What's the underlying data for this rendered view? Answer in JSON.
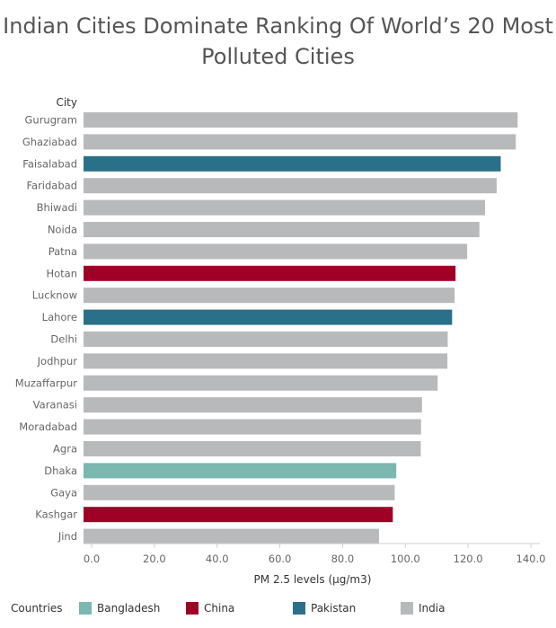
{
  "chart_data": {
    "type": "bar",
    "orientation": "horizontal",
    "title": "Indian Cities Dominate Ranking Of World’s 20 Most Polluted Cities",
    "title_lines": [
      "Indian Cities Dominate Ranking Of World’s 20 Most",
      "Polluted Cities"
    ],
    "ylabel": "City",
    "xlabel": "PM 2.5 levels (µg/m3)",
    "xlim": [
      0,
      140
    ],
    "xticks": [
      "0.0",
      "20.0",
      "40.0",
      "60.0",
      "80.0",
      "100.0",
      "120.0",
      "140.0"
    ],
    "categories": [
      "Gurugram",
      "Ghaziabad",
      "Faisalabad",
      "Faridabad",
      "Bhiwadi",
      "Noida",
      "Patna",
      "Hotan",
      "Lucknow",
      "Lahore",
      "Delhi",
      "Jodhpur",
      "Muzaffarpur",
      "Varanasi",
      "Moradabad",
      "Agra",
      "Dhaka",
      "Gaya",
      "Kashgar",
      "Jind"
    ],
    "values": [
      135.8,
      135.2,
      130.4,
      129.1,
      125.4,
      123.6,
      119.7,
      116.0,
      115.7,
      114.9,
      113.5,
      113.4,
      110.3,
      105.3,
      105.0,
      104.9,
      97.1,
      96.6,
      96.0,
      91.6
    ],
    "countries": [
      "India",
      "India",
      "Pakistan",
      "India",
      "India",
      "India",
      "India",
      "China",
      "India",
      "Pakistan",
      "India",
      "India",
      "India",
      "India",
      "India",
      "India",
      "Bangladesh",
      "India",
      "China",
      "India"
    ],
    "legend_title": "Countries",
    "legend": [
      {
        "name": "Bangladesh",
        "color": "#7ab8b0"
      },
      {
        "name": "China",
        "color": "#a10026"
      },
      {
        "name": "Pakistan",
        "color": "#2b7089"
      },
      {
        "name": "India",
        "color": "#b8b9bb"
      }
    ],
    "legend_placement": "bottom",
    "grid": false
  }
}
